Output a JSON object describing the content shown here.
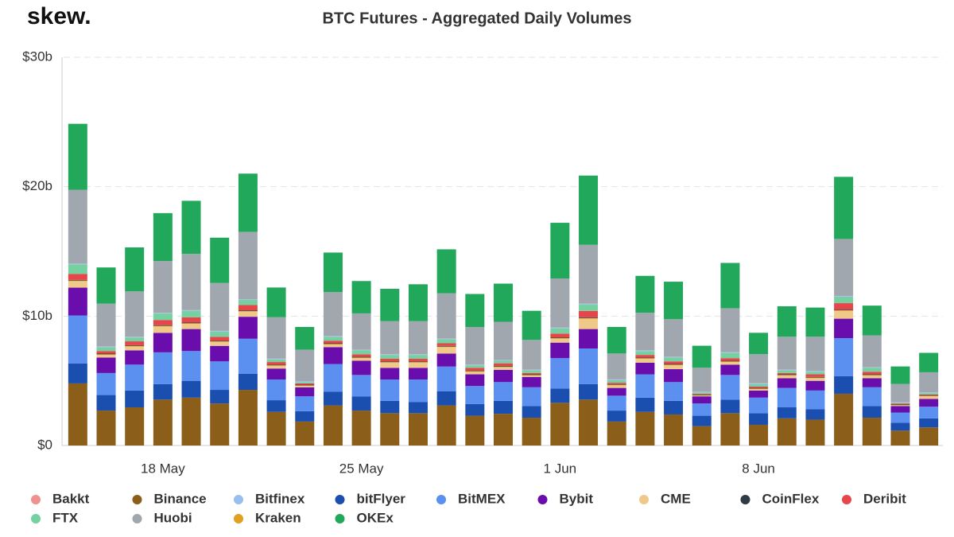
{
  "logo": "skew.",
  "chart_data": {
    "type": "stacked_bar",
    "title": "BTC Futures - Aggregated Daily Volumes",
    "categories": [
      null,
      null,
      null,
      "18 May",
      null,
      null,
      null,
      null,
      null,
      null,
      "25 May",
      null,
      null,
      null,
      null,
      null,
      null,
      "1 Jun",
      null,
      null,
      null,
      null,
      null,
      null,
      "8 Jun",
      null,
      null,
      null,
      null,
      null,
      null
    ],
    "ylim": [
      0,
      30
    ],
    "yticks": [
      {
        "value": 0,
        "label": "$0"
      },
      {
        "value": 10,
        "label": "$10b"
      },
      {
        "value": 20,
        "label": "$20b"
      },
      {
        "value": 30,
        "label": "$30b"
      }
    ],
    "grid": true,
    "legend": "bottom",
    "series": [
      {
        "name": "Bakkt",
        "color": "#f28f8f",
        "values": [
          0.01,
          0.01,
          0.01,
          0.01,
          0.01,
          0.01,
          0.01,
          0.01,
          0.01,
          0.01,
          0.01,
          0.01,
          0.01,
          0.01,
          0.01,
          0.01,
          0.01,
          0.01,
          0.01,
          0.01,
          0.01,
          0.01,
          0.01,
          0.01,
          0.01,
          0.01,
          0.01,
          0.01,
          0.01,
          0.01,
          0.01
        ]
      },
      {
        "name": "Binance",
        "color": "#8b5e1a",
        "values": [
          4.8,
          2.7,
          2.95,
          3.55,
          3.7,
          3.25,
          4.3,
          2.6,
          1.85,
          3.1,
          2.7,
          2.5,
          2.5,
          3.1,
          2.3,
          2.45,
          2.15,
          3.3,
          3.55,
          1.85,
          2.6,
          2.4,
          1.5,
          2.5,
          1.6,
          2.1,
          2.0,
          4.0,
          2.15,
          1.15,
          1.4
        ]
      },
      {
        "name": "Bitfinex",
        "color": "#99bff0",
        "values": [
          0.05,
          0.05,
          0.05,
          0.05,
          0.05,
          0.05,
          0.05,
          0.05,
          0.05,
          0.05,
          0.05,
          0.05,
          0.05,
          0.05,
          0.05,
          0.05,
          0.05,
          0.05,
          0.05,
          0.05,
          0.05,
          0.05,
          0.05,
          0.05,
          0.05,
          0.05,
          0.05,
          0.05,
          0.05,
          0.05,
          0.05
        ]
      },
      {
        "name": "bitFlyer",
        "color": "#1a4fb0",
        "values": [
          1.55,
          1.2,
          1.3,
          1.2,
          1.3,
          1.05,
          1.25,
          0.9,
          0.8,
          1.05,
          1.1,
          0.95,
          0.85,
          1.1,
          0.9,
          1.0,
          0.9,
          1.1,
          1.2,
          0.85,
          1.1,
          1.05,
          0.8,
          1.05,
          0.9,
          0.85,
          0.8,
          1.35,
          0.9,
          0.6,
          0.7
        ]
      },
      {
        "name": "BitMEX",
        "color": "#5b8ff0",
        "values": [
          3.7,
          1.7,
          2.0,
          2.45,
          2.3,
          2.2,
          2.7,
          1.6,
          1.15,
          2.15,
          1.65,
          1.65,
          1.75,
          1.9,
          1.4,
          1.45,
          1.45,
          2.35,
          2.75,
          1.15,
          1.8,
          1.45,
          0.95,
          1.9,
          1.2,
          1.5,
          1.45,
          2.95,
          1.45,
          0.8,
          0.9
        ]
      },
      {
        "name": "Bybit",
        "color": "#6a0dad",
        "values": [
          2.15,
          1.2,
          1.1,
          1.5,
          1.7,
          1.2,
          1.7,
          0.85,
          0.7,
          1.3,
          1.1,
          0.9,
          0.9,
          1.0,
          0.9,
          0.95,
          0.8,
          1.2,
          1.5,
          0.6,
          0.9,
          1.0,
          0.55,
          0.8,
          0.55,
          0.75,
          0.75,
          1.5,
          0.7,
          0.5,
          0.6
        ]
      },
      {
        "name": "CME",
        "color": "#f0c98a",
        "values": [
          0.5,
          0.2,
          0.3,
          0.5,
          0.4,
          0.3,
          0.4,
          0.2,
          0.1,
          0.2,
          0.2,
          0.4,
          0.4,
          0.5,
          0.2,
          0.2,
          0.1,
          0.3,
          0.8,
          0.2,
          0.3,
          0.3,
          0.05,
          0.2,
          0.1,
          0.2,
          0.2,
          0.6,
          0.2,
          0.05,
          0.2
        ]
      },
      {
        "name": "CoinFlex",
        "color": "#2f3a45",
        "values": [
          0.05,
          0.05,
          0.05,
          0.05,
          0.05,
          0.05,
          0.05,
          0.05,
          0.05,
          0.05,
          0.05,
          0.05,
          0.05,
          0.05,
          0.05,
          0.05,
          0.05,
          0.05,
          0.05,
          0.05,
          0.05,
          0.05,
          0.05,
          0.05,
          0.05,
          0.05,
          0.05,
          0.05,
          0.05,
          0.05,
          0.05
        ]
      },
      {
        "name": "Deribit",
        "color": "#e8454a",
        "values": [
          0.45,
          0.2,
          0.3,
          0.4,
          0.4,
          0.3,
          0.4,
          0.2,
          0.1,
          0.2,
          0.2,
          0.2,
          0.2,
          0.2,
          0.2,
          0.2,
          0.1,
          0.3,
          0.5,
          0.1,
          0.2,
          0.2,
          0.05,
          0.2,
          0.1,
          0.1,
          0.2,
          0.5,
          0.2,
          0.05,
          0.05
        ]
      },
      {
        "name": "FTX",
        "color": "#76d1a0",
        "values": [
          0.75,
          0.3,
          0.3,
          0.5,
          0.5,
          0.4,
          0.4,
          0.2,
          0.1,
          0.3,
          0.3,
          0.3,
          0.3,
          0.3,
          0.2,
          0.2,
          0.2,
          0.4,
          0.5,
          0.2,
          0.3,
          0.3,
          0.1,
          0.4,
          0.2,
          0.2,
          0.2,
          0.5,
          0.3,
          0.05,
          0.1
        ]
      },
      {
        "name": "Huobi",
        "color": "#a0a7ae",
        "values": [
          5.7,
          3.3,
          3.5,
          4.0,
          4.35,
          3.7,
          5.2,
          3.2,
          2.45,
          3.4,
          2.8,
          2.55,
          2.55,
          3.5,
          2.9,
          2.95,
          2.3,
          3.8,
          4.55,
          2.0,
          2.9,
          2.9,
          1.85,
          3.4,
          2.25,
          2.55,
          2.65,
          4.4,
          2.45,
          1.4,
          1.55
        ]
      },
      {
        "name": "Kraken",
        "color": "#e0a020",
        "values": [
          0.05,
          0.05,
          0.05,
          0.05,
          0.05,
          0.05,
          0.05,
          0.05,
          0.05,
          0.05,
          0.05,
          0.05,
          0.05,
          0.05,
          0.05,
          0.05,
          0.05,
          0.05,
          0.05,
          0.05,
          0.05,
          0.05,
          0.05,
          0.05,
          0.05,
          0.05,
          0.05,
          0.05,
          0.05,
          0.05,
          0.05
        ]
      },
      {
        "name": "OKEx",
        "color": "#22a85a",
        "values": [
          5.1,
          2.8,
          3.4,
          3.7,
          4.1,
          3.5,
          4.5,
          2.3,
          1.75,
          3.05,
          2.5,
          2.5,
          2.85,
          3.4,
          2.55,
          2.95,
          2.25,
          4.3,
          5.35,
          2.05,
          2.85,
          2.9,
          1.7,
          3.5,
          1.65,
          2.35,
          2.25,
          4.8,
          2.3,
          1.35,
          1.5
        ]
      }
    ]
  }
}
